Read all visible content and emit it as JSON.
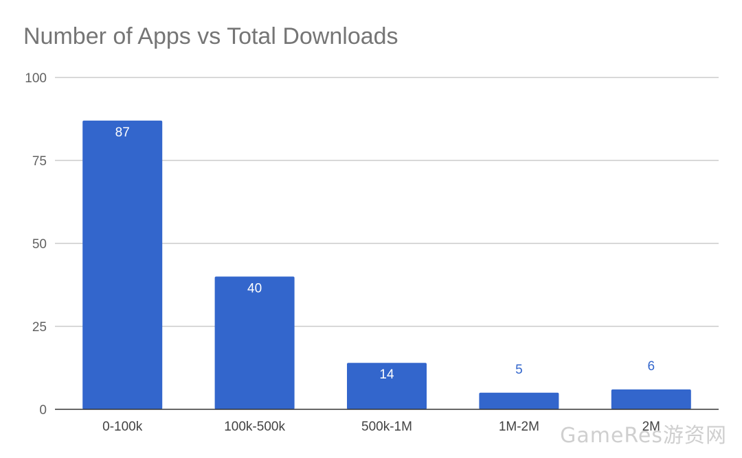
{
  "chart_data": {
    "type": "bar",
    "title": "Number of Apps vs Total Downloads",
    "categories": [
      "0-100k",
      "100k-500k",
      "500k-1M",
      "1M-2M",
      "2M"
    ],
    "values": [
      87,
      40,
      14,
      5,
      6
    ],
    "ylim": [
      0,
      100
    ],
    "yticks": [
      0,
      25,
      50,
      75,
      100
    ],
    "grid": true,
    "legend": "none",
    "bar_color": "#3366cc",
    "xlabel": "",
    "ylabel": ""
  },
  "watermark": "GameRes游资网"
}
